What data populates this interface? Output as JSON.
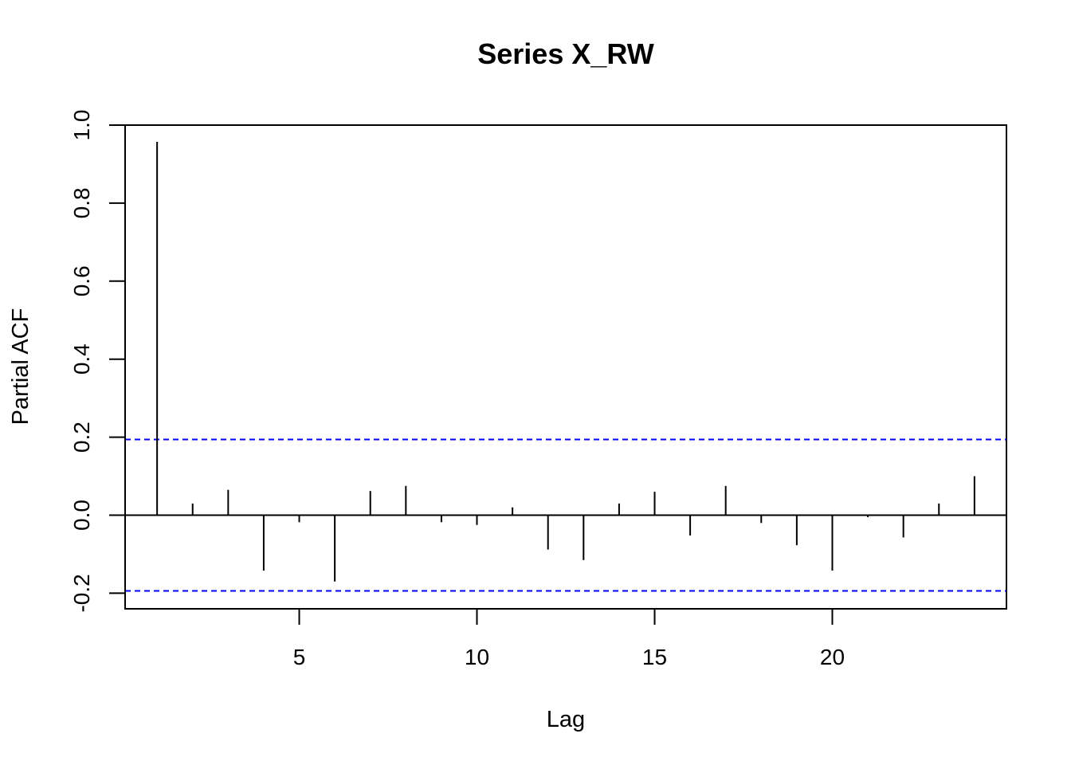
{
  "chart_data": {
    "type": "bar",
    "title": "Series  X_RW",
    "xlabel": "Lag",
    "ylabel": "Partial ACF",
    "x": [
      1,
      2,
      3,
      4,
      5,
      6,
      7,
      8,
      9,
      10,
      11,
      12,
      13,
      14,
      15,
      16,
      17,
      18,
      19,
      20,
      21,
      22,
      23,
      24
    ],
    "values": [
      0.957,
      0.03,
      0.065,
      -0.142,
      -0.018,
      -0.17,
      0.062,
      0.075,
      -0.018,
      -0.025,
      0.02,
      -0.088,
      -0.115,
      0.03,
      0.06,
      -0.052,
      0.075,
      -0.02,
      -0.077,
      -0.142,
      -0.005,
      -0.057,
      0.03,
      0.1
    ],
    "confidence_limit": 0.194,
    "confidence_color": "#0000ff",
    "xlim": [
      0.1,
      24.9
    ],
    "ylim": [
      -0.24,
      1.0
    ],
    "xticks": [
      5,
      10,
      15,
      20
    ],
    "yticks": [
      -0.2,
      0.0,
      0.2,
      0.4,
      0.6,
      0.8,
      1.0
    ],
    "ytick_labels": [
      "-0.2",
      "0.0",
      "0.2",
      "0.4",
      "0.6",
      "0.8",
      "1.0"
    ],
    "grid": false
  }
}
